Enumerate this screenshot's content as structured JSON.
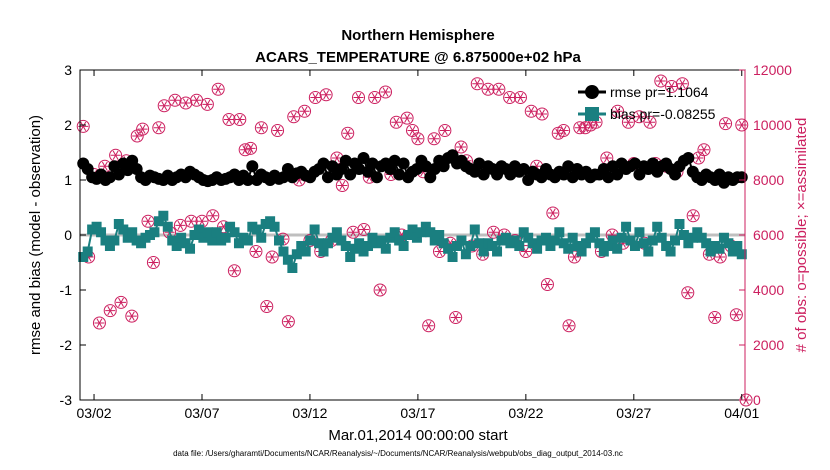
{
  "chart_data": {
    "type": "line",
    "title_line1": "Northern Hemisphere",
    "title_line2": "ACARS_TEMPERATURE @ 6.875000e+02 hPa",
    "xlabel": "Mar.01,2014 00:00:00 start",
    "ylabel_left": "rmse and bias (model - observation)",
    "ylabel_right": "# of obs: o=possible; ×=assimilated",
    "footer": "data file: /Users/gharamti/Documents/NCAR/Reanalysis/~/Documents/NCAR/Reanalysis/webpub/obs_diag_output_2014-03.nc",
    "x_unit": "day of March 2014 (fractional, 0 = Mar.01 00:00)",
    "xlim": [
      0.35,
      31.15
    ],
    "ylim_left": [
      -3,
      3
    ],
    "ylim_right": [
      0,
      12000
    ],
    "x_ticks": [
      {
        "label": "03/02",
        "x": 1
      },
      {
        "label": "03/07",
        "x": 6
      },
      {
        "label": "03/12",
        "x": 11
      },
      {
        "label": "03/17",
        "x": 16
      },
      {
        "label": "03/22",
        "x": 21
      },
      {
        "label": "03/27",
        "x": 26
      },
      {
        "label": "04/01",
        "x": 31
      }
    ],
    "y_ticks_left": [
      -3,
      -2,
      -1,
      0,
      1,
      2,
      3
    ],
    "y_ticks_right": [
      0,
      2000,
      4000,
      6000,
      8000,
      10000,
      12000
    ],
    "legend": {
      "position": "top-right",
      "rmse_label": "rmse pr=1.1064",
      "bias_label": "bias pr=-0.08255"
    },
    "colors": {
      "rmse": "#000000",
      "bias": "#1a7f80",
      "obs": "#cc1f5f",
      "zero_line": "#bfbfbf"
    },
    "series": [
      {
        "name": "rmse pr=1.1064",
        "values": [
          1.3,
          1.2,
          1.05,
          1.02,
          1.1,
          1.0,
          1.05,
          1.25,
          1.1,
          1.3,
          1.18,
          1.35,
          1.2,
          1.05,
          1.0,
          1.08,
          1.05,
          1.02,
          1.0,
          1.08,
          1.0,
          1.05,
          1.1,
          1.05,
          1.15,
          1.1,
          1.05,
          1.0,
          0.98,
          1.0,
          1.05,
          1.0,
          1.02,
          1.05,
          1.1,
          1.0,
          1.08,
          1.0,
          1.25,
          1.0,
          1.1,
          1.05,
          1.0,
          1.08,
          1.02,
          1.05,
          1.2,
          1.05,
          1.12,
          1.15,
          1.08,
          1.05,
          1.15,
          1.2,
          1.3,
          1.05,
          1.25,
          1.1,
          1.2,
          1.35,
          1.1,
          1.3,
          1.2,
          1.4,
          1.15,
          1.3,
          1.05,
          1.25,
          1.3,
          1.2,
          1.35,
          1.1,
          1.3,
          1.05,
          1.15,
          1.2,
          1.35,
          1.25,
          1.05,
          1.2,
          1.35,
          1.25,
          1.4,
          1.45,
          1.3,
          1.35,
          1.25,
          1.2,
          1.15,
          1.3,
          1.1,
          1.25,
          1.2,
          1.1,
          1.25,
          1.2,
          1.1,
          1.25,
          1.15,
          1.2,
          1.0,
          1.15,
          1.1,
          1.05,
          1.2,
          1.1,
          1.05,
          1.15,
          1.1,
          1.25,
          1.05,
          1.2,
          1.1,
          1.15,
          1.05,
          1.1,
          1.1,
          1.2,
          1.05,
          1.25,
          1.1,
          1.3,
          1.2,
          1.25,
          1.3,
          1.1,
          1.25,
          1.2,
          1.3,
          1.15,
          1.25,
          1.3,
          1.2,
          1.1,
          1.25,
          1.35,
          1.4,
          1.15,
          1.05,
          1.0,
          1.1,
          1.05,
          1.0,
          1.1,
          0.95,
          1.05,
          1.0,
          1.05,
          1.05
        ]
      },
      {
        "name": "bias pr=-0.08255",
        "values": [
          -0.4,
          -0.3,
          0.1,
          0.15,
          0.05,
          -0.1,
          -0.2,
          -0.1,
          0.2,
          0.1,
          -0.05,
          0.05,
          -0.1,
          -0.15,
          -0.05,
          0.0,
          0.05,
          0.25,
          0.35,
          0.15,
          -0.1,
          -0.2,
          -0.05,
          -0.15,
          -0.25,
          0.0,
          0.1,
          -0.05,
          0.05,
          -0.1,
          0.05,
          -0.1,
          -0.05,
          0.15,
          0.05,
          -0.15,
          -0.05,
          -0.1,
          0.15,
          0.1,
          -0.05,
          0.2,
          0.25,
          0.15,
          -0.1,
          -0.3,
          -0.45,
          -0.6,
          -0.35,
          -0.2,
          -0.3,
          -0.1,
          0.1,
          -0.15,
          -0.3,
          -0.15,
          -0.05,
          0.05,
          -0.1,
          -0.2,
          -0.4,
          -0.25,
          -0.15,
          -0.3,
          -0.2,
          -0.05,
          -0.15,
          -0.1,
          -0.25,
          -0.05,
          0.05,
          -0.1,
          -0.2,
          0.0,
          0.1,
          -0.05,
          0.05,
          0.15,
          0.05,
          -0.1,
          0.0,
          -0.15,
          -0.25,
          -0.4,
          -0.2,
          -0.1,
          -0.35,
          -0.2,
          0.1,
          -0.15,
          -0.3,
          -0.15,
          -0.2,
          -0.3,
          -0.1,
          -0.05,
          -0.15,
          -0.1,
          -0.2,
          0.05,
          -0.05,
          -0.15,
          -0.25,
          -0.1,
          -0.05,
          -0.2,
          -0.1,
          0.05,
          -0.15,
          -0.25,
          -0.05,
          -0.2,
          -0.3,
          -0.15,
          -0.05,
          0.05,
          -0.15,
          -0.3,
          -0.2,
          -0.1,
          -0.25,
          -0.05,
          0.15,
          -0.1,
          -0.2,
          0.05,
          -0.15,
          -0.3,
          -0.1,
          0.15,
          -0.05,
          -0.2,
          -0.3,
          -0.1,
          0.2,
          0.0,
          -0.15,
          -0.05,
          0.05,
          -0.05,
          -0.15,
          -0.3,
          -0.2,
          -0.25,
          -0.05,
          -0.15,
          -0.3,
          -0.2,
          -0.35
        ]
      },
      {
        "name": "obs possible/assimilated",
        "axis": "right",
        "points": [
          [
            0.5,
            9950
          ],
          [
            0.75,
            5200
          ],
          [
            1.0,
            8200
          ],
          [
            1.25,
            2800
          ],
          [
            1.5,
            8500
          ],
          [
            1.75,
            3250
          ],
          [
            2.0,
            8900
          ],
          [
            2.25,
            3550
          ],
          [
            2.5,
            8700
          ],
          [
            2.75,
            3050
          ],
          [
            3.0,
            9600
          ],
          [
            3.25,
            9850
          ],
          [
            3.5,
            6500
          ],
          [
            3.75,
            5000
          ],
          [
            4.0,
            9900
          ],
          [
            4.25,
            10700
          ],
          [
            4.5,
            6100
          ],
          [
            4.75,
            10900
          ],
          [
            5.0,
            6350
          ],
          [
            5.25,
            10800
          ],
          [
            5.5,
            6500
          ],
          [
            5.75,
            10900
          ],
          [
            6.0,
            6500
          ],
          [
            6.25,
            10750
          ],
          [
            6.5,
            6700
          ],
          [
            6.75,
            11300
          ],
          [
            7.0,
            6300
          ],
          [
            7.25,
            10200
          ],
          [
            7.5,
            4700
          ],
          [
            7.75,
            10200
          ],
          [
            8.0,
            9100
          ],
          [
            8.25,
            9150
          ],
          [
            8.5,
            5400
          ],
          [
            8.75,
            9900
          ],
          [
            9.0,
            3400
          ],
          [
            9.25,
            5200
          ],
          [
            9.5,
            9800
          ],
          [
            9.75,
            5850
          ],
          [
            10.0,
            2850
          ],
          [
            10.25,
            10300
          ],
          [
            10.5,
            8000
          ],
          [
            10.75,
            10500
          ],
          [
            11.0,
            5800
          ],
          [
            11.25,
            11000
          ],
          [
            11.5,
            5400
          ],
          [
            11.75,
            11100
          ],
          [
            12.0,
            5800
          ],
          [
            12.25,
            8800
          ],
          [
            12.5,
            7800
          ],
          [
            12.75,
            9700
          ],
          [
            13.0,
            6100
          ],
          [
            13.25,
            11000
          ],
          [
            13.5,
            6200
          ],
          [
            13.75,
            8100
          ],
          [
            14.0,
            11000
          ],
          [
            14.25,
            4000
          ],
          [
            14.5,
            11200
          ],
          [
            14.75,
            8200
          ],
          [
            15.0,
            10100
          ],
          [
            15.25,
            6000
          ],
          [
            15.5,
            10250
          ],
          [
            15.75,
            9800
          ],
          [
            16.0,
            9500
          ],
          [
            16.25,
            8300
          ],
          [
            16.5,
            2700
          ],
          [
            16.75,
            9500
          ],
          [
            17.0,
            5400
          ],
          [
            17.25,
            9800
          ],
          [
            17.5,
            5700
          ],
          [
            17.75,
            3000
          ],
          [
            18.0,
            9200
          ],
          [
            18.25,
            8700
          ],
          [
            18.5,
            5600
          ],
          [
            18.75,
            11500
          ],
          [
            19.0,
            5300
          ],
          [
            19.25,
            11300
          ],
          [
            19.5,
            6100
          ],
          [
            19.75,
            11300
          ],
          [
            20.0,
            6000
          ],
          [
            20.25,
            11000
          ],
          [
            20.5,
            5800
          ],
          [
            20.75,
            11000
          ],
          [
            21.0,
            5400
          ],
          [
            21.25,
            10500
          ],
          [
            21.5,
            8500
          ],
          [
            21.75,
            10400
          ],
          [
            22.0,
            4200
          ],
          [
            22.25,
            6800
          ],
          [
            22.5,
            9700
          ],
          [
            22.75,
            9800
          ],
          [
            23.0,
            2700
          ],
          [
            23.25,
            5200
          ],
          [
            23.5,
            9900
          ],
          [
            23.75,
            9900
          ],
          [
            24.0,
            10000
          ],
          [
            24.25,
            10100
          ],
          [
            24.5,
            5400
          ],
          [
            24.75,
            8800
          ],
          [
            25.0,
            6000
          ],
          [
            25.25,
            10500
          ],
          [
            25.5,
            5700
          ],
          [
            25.75,
            10100
          ],
          [
            26.0,
            8600
          ],
          [
            26.25,
            10300
          ],
          [
            26.5,
            5700
          ],
          [
            26.75,
            10100
          ],
          [
            27.0,
            8600
          ],
          [
            27.25,
            11600
          ],
          [
            27.5,
            8500
          ],
          [
            27.75,
            11400
          ],
          [
            28.0,
            8300
          ],
          [
            28.25,
            11500
          ],
          [
            28.5,
            3900
          ],
          [
            28.75,
            6700
          ],
          [
            29.0,
            8800
          ],
          [
            29.25,
            9100
          ],
          [
            29.5,
            5300
          ],
          [
            29.75,
            3000
          ],
          [
            30.0,
            5200
          ],
          [
            30.25,
            10050
          ],
          [
            30.5,
            5600
          ],
          [
            30.75,
            3100
          ],
          [
            31.0,
            10000
          ],
          [
            31.2,
            0
          ]
        ]
      }
    ]
  }
}
